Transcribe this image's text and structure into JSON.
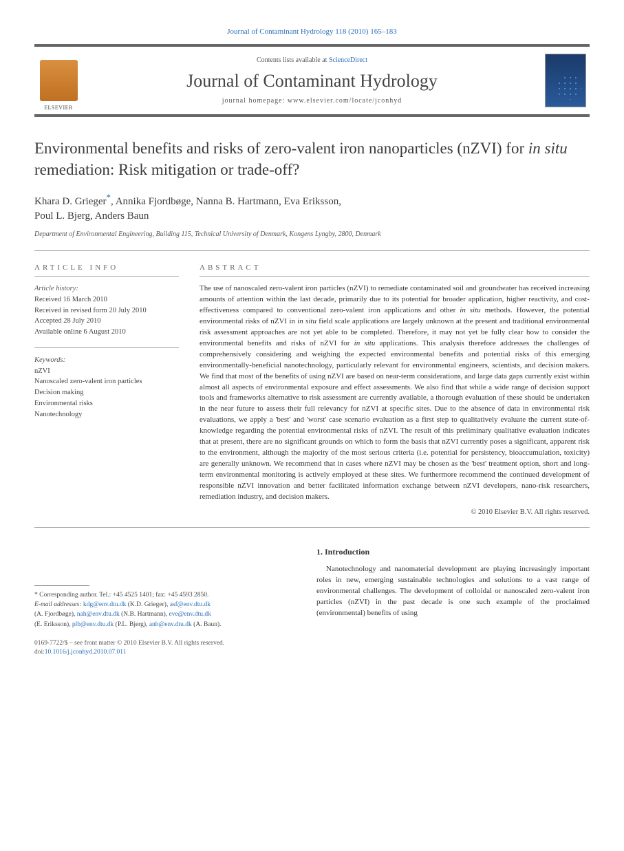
{
  "top_citation": "Journal of Contaminant Hydrology 118 (2010) 165–183",
  "header": {
    "contents_prefix": "Contents lists available at ",
    "contents_link": "ScienceDirect",
    "journal_name": "Journal of Contaminant Hydrology",
    "homepage_prefix": "journal homepage: ",
    "homepage": "www.elsevier.com/locate/jconhyd"
  },
  "title_a": "Environmental benefits and risks of zero-valent iron nanoparticles (nZVI) for ",
  "title_italic": "in situ",
  "title_b": " remediation: Risk mitigation or trade-off?",
  "authors_line1": "Khara D. Grieger",
  "authors_corr": "*",
  "authors_line1b": ", Annika Fjordbøge, Nanna B. Hartmann, Eva Eriksson,",
  "authors_line2": "Poul L. Bjerg, Anders Baun",
  "affiliation": "Department of Environmental Engineering, Building 115, Technical University of Denmark, Kongens Lyngby, 2800, Denmark",
  "info": {
    "label": "ARTICLE INFO",
    "history_label": "Article history:",
    "history": [
      "Received 16 March 2010",
      "Received in revised form 20 July 2010",
      "Accepted 28 July 2010",
      "Available online 6 August 2010"
    ],
    "keywords_label": "Keywords:",
    "keywords": [
      "nZVI",
      "Nanoscaled zero-valent iron particles",
      "Decision making",
      "Environmental risks",
      "Nanotechnology"
    ]
  },
  "abstract": {
    "label": "ABSTRACT",
    "text_a": "The use of nanoscaled zero-valent iron particles (nZVI) to remediate contaminated soil and groundwater has received increasing amounts of attention within the last decade, primarily due to its potential for broader application, higher reactivity, and cost-effectiveness compared to conventional zero-valent iron applications and other ",
    "italic1": "in situ",
    "text_b": " methods. However, the potential environmental risks of nZVI in ",
    "italic2": "in situ",
    "text_c": " field scale applications are largely unknown at the present and traditional environmental risk assessment approaches are not yet able to be completed. Therefore, it may not yet be fully clear how to consider the environmental benefits and risks of nZVI for ",
    "italic3": "in situ",
    "text_d": " applications. This analysis therefore addresses the challenges of comprehensively considering and weighing the expected environmental benefits and potential risks of this emerging environmentally-beneficial nanotechnology, particularly relevant for environmental engineers, scientists, and decision makers. We find that most of the benefits of using nZVI are based on near-term considerations, and large data gaps currently exist within almost all aspects of environmental exposure and effect assessments. We also find that while a wide range of decision support tools and frameworks alternative to risk assessment are currently available, a thorough evaluation of these should be undertaken in the near future to assess their full relevancy for nZVI at specific sites. Due to the absence of data in environmental risk evaluations, we apply a 'best' and 'worst' case scenario evaluation as a first step to qualitatively evaluate the current state-of-knowledge regarding the potential environmental risks of nZVI. The result of this preliminary qualitative evaluation indicates that at present, there are no significant grounds on which to form the basis that nZVI currently poses a significant, apparent risk to the environment, although the majority of the most serious criteria (i.e. potential for persistency, bioaccumulation, toxicity) are generally unknown. We recommend that in cases where nZVI may be chosen as the 'best' treatment option, short and long-term environmental monitoring is actively employed at these sites. We furthermore recommend the continued development of responsible nZVI innovation and better facilitated information exchange between nZVI developers, nano-risk researchers, remediation industry, and decision makers.",
    "copyright": "© 2010 Elsevier B.V. All rights reserved."
  },
  "footnote": {
    "corr": "* Corresponding author. Tel.: +45 4525 1401; fax: +45 4593 2850.",
    "email_label": "E-mail addresses: ",
    "emails": [
      {
        "addr": "kdg@env.dtu.dk",
        "name": " (K.D. Grieger), "
      },
      {
        "addr": "asf@env.dtu.dk",
        "name": ""
      }
    ],
    "line2a": "(A. Fjordbøge), ",
    "line2_e1": "nah@env.dtu.dk",
    "line2b": " (N.B. Hartmann), ",
    "line2_e2": "eve@env.dtu.dk",
    "line3a": "(E. Eriksson), ",
    "line3_e1": "plb@env.dtu.dk",
    "line3b": " (P.L. Bjerg), ",
    "line3_e2": "anb@env.dtu.dk",
    "line3c": " (A. Baun)."
  },
  "intro": {
    "heading": "1. Introduction",
    "text": "Nanotechnology and nanomaterial development are playing increasingly important roles in new, emerging sustainable technologies and solutions to a vast range of environmental challenges. The development of colloidal or nanoscaled zero-valent iron particles (nZVI) in the past decade is one such example of the proclaimed (environmental) benefits of using"
  },
  "bottom": {
    "issn": "0169-7722/$ – see front matter © 2010 Elsevier B.V. All rights reserved.",
    "doi_label": "doi:",
    "doi": "10.1016/j.jconhyd.2010.07.011"
  },
  "colors": {
    "link": "#2a6eb8",
    "rule": "#666666",
    "text": "#333333"
  }
}
